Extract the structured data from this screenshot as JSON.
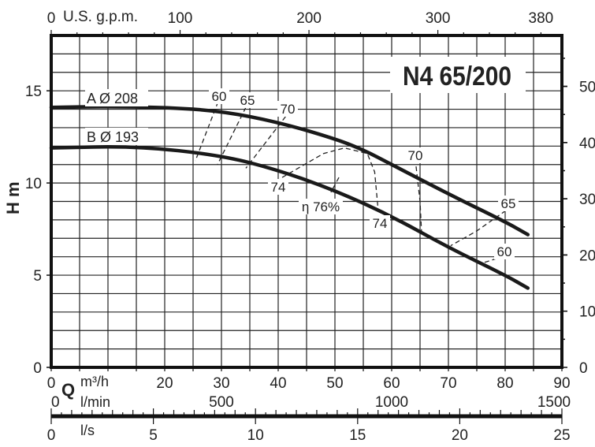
{
  "chart_data": {
    "type": "line",
    "title": "N4 65/200",
    "xlabel": "Q",
    "x_units": [
      "m³/h",
      "l/min",
      "l/s",
      "U.S. g.p.m."
    ],
    "ylabel": "H m",
    "xlim": [
      0,
      90
    ],
    "ylim": [
      0,
      18
    ],
    "grid": true,
    "x_ticks_m3h": [
      "0",
      "20",
      "30",
      "40",
      "50",
      "60",
      "70",
      "80",
      "90"
    ],
    "x_tick_values_m3h": [
      0,
      20,
      30,
      40,
      50,
      60,
      70,
      80,
      90
    ],
    "x_ticks_lmin": [
      "0",
      "500",
      "1000",
      "1500"
    ],
    "x_ticks_ls": [
      "0",
      "5",
      "10",
      "15",
      "20",
      "25"
    ],
    "x_ticks_gpm": [
      "0",
      "100",
      "200",
      "300",
      "380"
    ],
    "y_ticks_m": [
      "0",
      "5",
      "10",
      "15"
    ],
    "y_ticks_ft": [
      "0",
      "10",
      "20",
      "30",
      "40",
      "50"
    ],
    "series": [
      {
        "name": "A Ø 208",
        "x": [
          0,
          10,
          20,
          30,
          40,
          50,
          55,
          60,
          70,
          80,
          84
        ],
        "y": [
          14.1,
          14.15,
          14.1,
          13.9,
          13.3,
          12.4,
          11.8,
          11.0,
          9.4,
          7.9,
          7.2
        ]
      },
      {
        "name": "B Ø 193",
        "x": [
          0,
          15,
          30,
          40,
          50,
          60,
          70,
          80,
          84
        ],
        "y": [
          11.9,
          12.0,
          11.5,
          10.7,
          9.6,
          8.2,
          6.5,
          5.0,
          4.3
        ]
      }
    ],
    "efficiency_curves": [
      {
        "label": "60",
        "x": [
          29.4,
          25.4
        ],
        "y": [
          14.4,
          11.2
        ]
      },
      {
        "label": "65",
        "x": [
          34.3,
          29.3
        ],
        "y": [
          14.1,
          11.0
        ]
      },
      {
        "label": "70",
        "x": [
          41.3,
          34.3
        ],
        "y": [
          13.6,
          10.8
        ]
      },
      {
        "label": "74",
        "x": [
          40.7,
          43.8,
          48,
          51.7,
          55.7,
          57,
          57.6
        ],
        "y": [
          10.3,
          10.85,
          11.6,
          11.9,
          11.6,
          10.6,
          8.6
        ]
      },
      {
        "label": "η 76%",
        "x": [
          50.7,
          49.3
        ],
        "y": [
          10.3,
          9.5
        ]
      },
      {
        "label": "70",
        "x": [
          64.3,
          65.0,
          65.3
        ],
        "y": [
          10.9,
          9.0,
          7.1
        ]
      },
      {
        "label": "65",
        "x": [
          80.1,
          75,
          70.4
        ],
        "y": [
          8.5,
          7.4,
          6.6
        ]
      },
      {
        "label": "60",
        "x": [
          78.5,
          75.4
        ],
        "y": [
          5.9,
          5.6
        ]
      }
    ],
    "annotations": [
      "60",
      "65",
      "70",
      "74",
      "η 76%",
      "74",
      "70",
      "65",
      "60"
    ]
  }
}
